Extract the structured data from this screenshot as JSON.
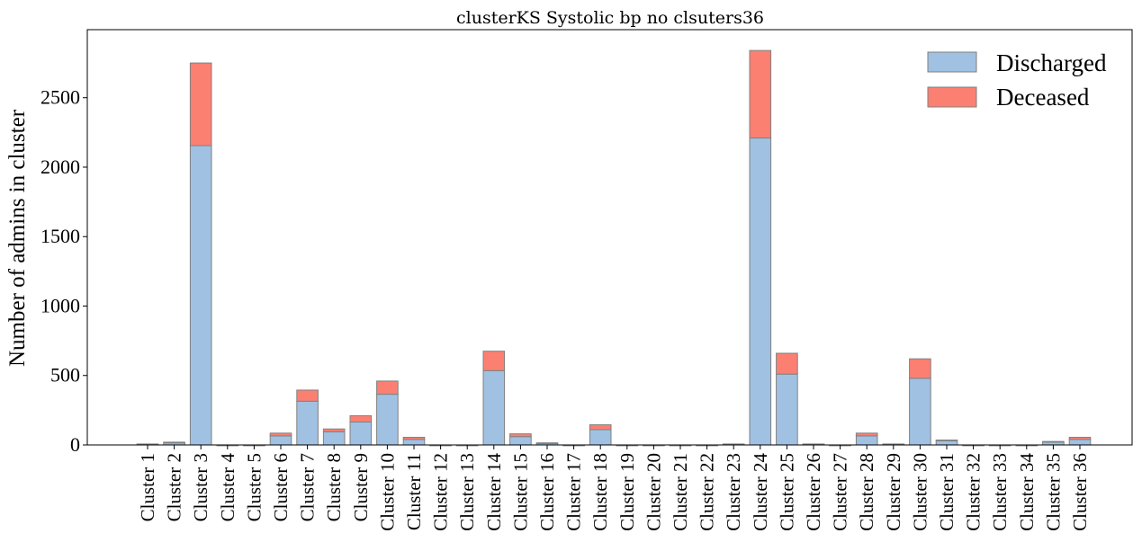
{
  "chart_data": {
    "type": "bar",
    "stacked": true,
    "title": "clusterKS Systolic bp no clsuters36",
    "xlabel": "",
    "ylabel": "Number of admins in cluster",
    "ylim": [
      0,
      2990
    ],
    "yticks": [
      0,
      500,
      1000,
      1500,
      2000,
      2500
    ],
    "legend_position": "top-right",
    "grid": false,
    "categories": [
      "Cluster 1",
      "Cluster 2",
      "Cluster 3",
      "Cluster 4",
      "Cluster 5",
      "Cluster 6",
      "Cluster 7",
      "Cluster 8",
      "Cluster 9",
      "Cluster 10",
      "Cluster 11",
      "Cluster 12",
      "Cluster 13",
      "Cluster 14",
      "Cluster 15",
      "Cluster 16",
      "Cluster 17",
      "Cluster 18",
      "Cluster 19",
      "Cluster 20",
      "Cluster 21",
      "Cluster 22",
      "Cluster 23",
      "Cluster 24",
      "Cluster 25",
      "Cluster 26",
      "Cluster 27",
      "Cluster 28",
      "Cluster 29",
      "Cluster 30",
      "Cluster 31",
      "Cluster 32",
      "Cluster 33",
      "Cluster 34",
      "Cluster 35",
      "Cluster 36"
    ],
    "series": [
      {
        "name": "Discharged",
        "color": "#a0c1e2",
        "values": [
          5,
          15,
          2155,
          0,
          0,
          65,
          315,
          95,
          165,
          365,
          40,
          0,
          0,
          535,
          60,
          10,
          0,
          110,
          0,
          0,
          0,
          0,
          5,
          2210,
          510,
          5,
          0,
          65,
          5,
          480,
          30,
          0,
          0,
          0,
          20,
          40
        ]
      },
      {
        "name": "Deceased",
        "color": "#fb8072",
        "values": [
          2,
          5,
          595,
          0,
          0,
          20,
          80,
          20,
          45,
          95,
          15,
          0,
          0,
          140,
          20,
          5,
          0,
          35,
          0,
          0,
          0,
          0,
          2,
          630,
          150,
          2,
          0,
          20,
          2,
          140,
          5,
          0,
          0,
          0,
          5,
          15
        ]
      }
    ]
  }
}
